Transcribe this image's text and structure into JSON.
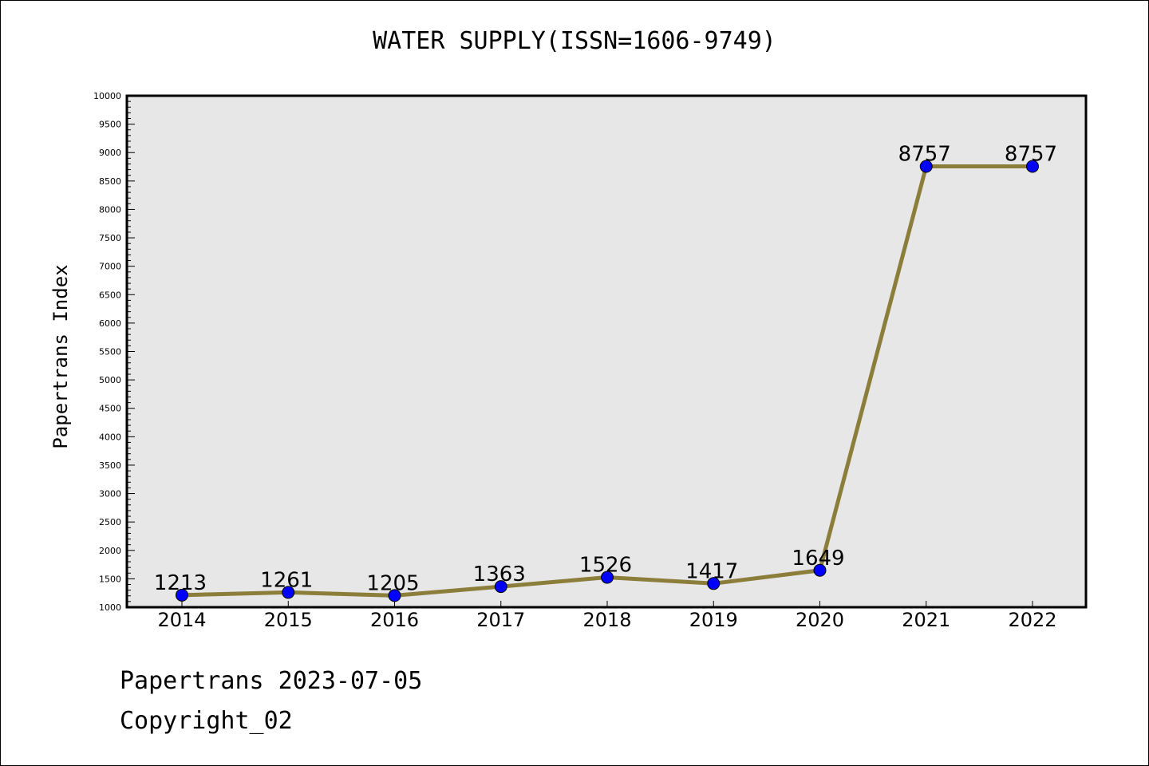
{
  "chart_data": {
    "type": "line",
    "title": "WATER SUPPLY(ISSN=1606-9749)",
    "xlabel": "",
    "ylabel": "Papertrans Index",
    "categories": [
      "2014",
      "2015",
      "2016",
      "2017",
      "2018",
      "2019",
      "2020",
      "2021",
      "2022"
    ],
    "series": [
      {
        "values": [
          1213,
          1261,
          1205,
          1363,
          1526,
          1417,
          1649,
          8757,
          8757
        ]
      }
    ],
    "ylim": [
      1000,
      10000
    ],
    "yticks": [
      1000,
      1500,
      2000,
      2500,
      3000,
      3500,
      4000,
      4500,
      5000,
      5500,
      6000,
      6500,
      7000,
      7500,
      8000,
      8500,
      9000,
      9500,
      10000
    ],
    "grid": false,
    "legend": "none"
  },
  "colors": {
    "line": "#8b7d3a",
    "marker": "#0000ff",
    "plot_background": "#e7e7e7"
  },
  "footer": {
    "line1": "Papertrans 2023-07-05",
    "line2": "Copyright_02"
  }
}
